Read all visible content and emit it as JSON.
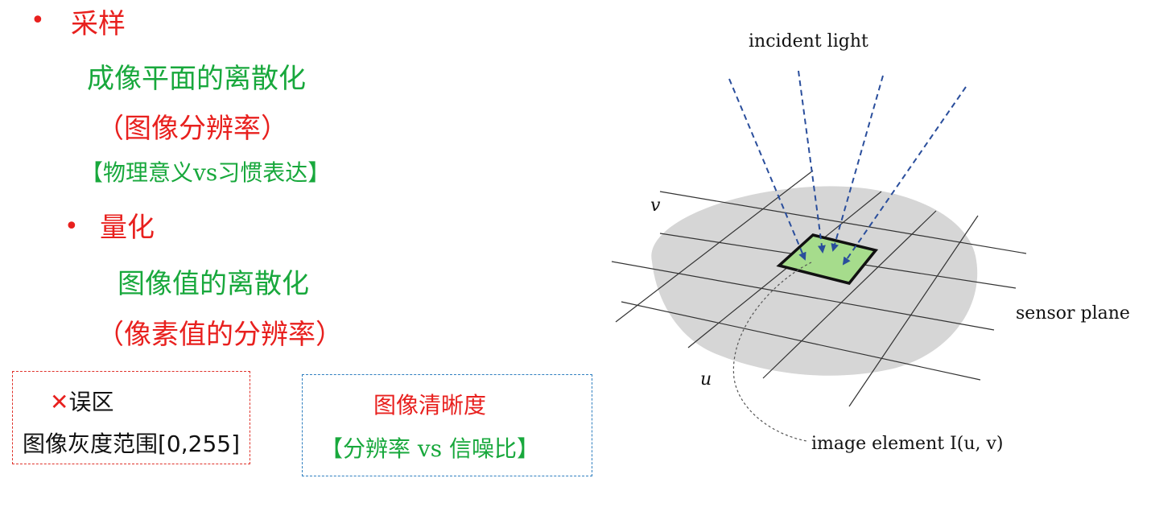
{
  "left": {
    "bullet1": {
      "marker": "•",
      "label": "采样"
    },
    "line1": "成像平面的离散化",
    "line2": "（图像分辨率）",
    "line3": "【物理意义vs习惯表达】",
    "bullet2": {
      "marker": "•",
      "label": "量化"
    },
    "line4": "图像值的离散化",
    "line5": "（像素值的分辨率）"
  },
  "misconception_box": {
    "icon": "✕",
    "title": "误区",
    "text": "图像灰度范围[0,255]"
  },
  "clarity_box": {
    "title": "图像清晰度",
    "text": "【分辨率 vs 信噪比】"
  },
  "diagram": {
    "incident_label": "incident light",
    "v_label": "v",
    "u_label": "u",
    "sensor_label": "sensor plane",
    "element_label": "image element I(u, v)",
    "colors": {
      "plane": "#d6d6d6",
      "pixel_fill": "#a6dc8c",
      "ray": "#2a4e9c"
    }
  }
}
